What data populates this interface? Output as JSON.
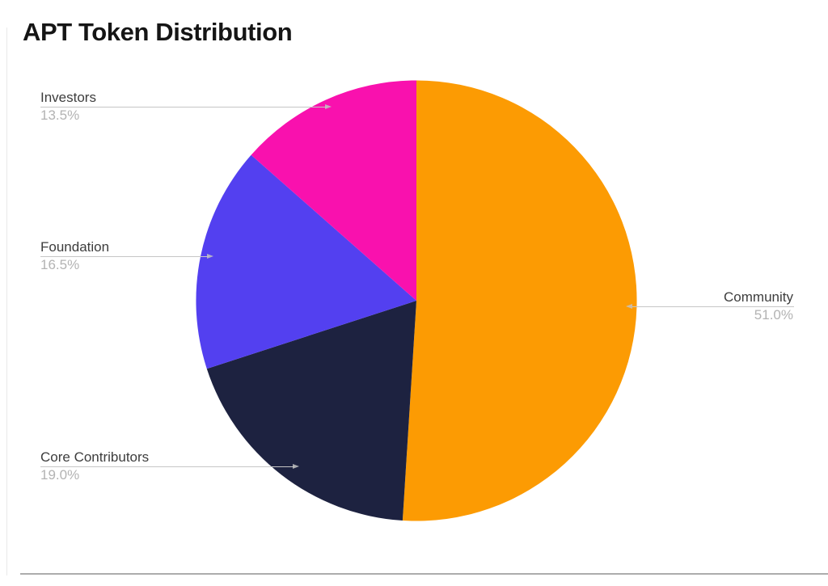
{
  "page": {
    "title": "APT Token Distribution"
  },
  "chart_data": {
    "type": "pie",
    "title": "APT Token Distribution",
    "unit": "%",
    "total": 100,
    "start_angle_deg": 0,
    "direction": "clockwise",
    "legend": "none",
    "labels_outside": true,
    "series": [
      {
        "name": "Community",
        "value": 51.0,
        "pct_label": "51.0%",
        "color": "#FC9B03",
        "label_side": "right"
      },
      {
        "name": "Core Contributors",
        "value": 19.0,
        "pct_label": "19.0%",
        "color": "#1D2240",
        "label_side": "left"
      },
      {
        "name": "Foundation",
        "value": 16.5,
        "pct_label": "16.5%",
        "color": "#5340F0",
        "label_side": "left"
      },
      {
        "name": "Investors",
        "value": 13.5,
        "pct_label": "13.5%",
        "color": "#F911AE",
        "label_side": "left"
      }
    ],
    "colors": {
      "leader_line": "#C6C6C6",
      "label_text": "#3D3D3D",
      "pct_text": "#B3B3B3",
      "title_text": "#151515",
      "bottom_rule": "#ACACAC"
    }
  }
}
